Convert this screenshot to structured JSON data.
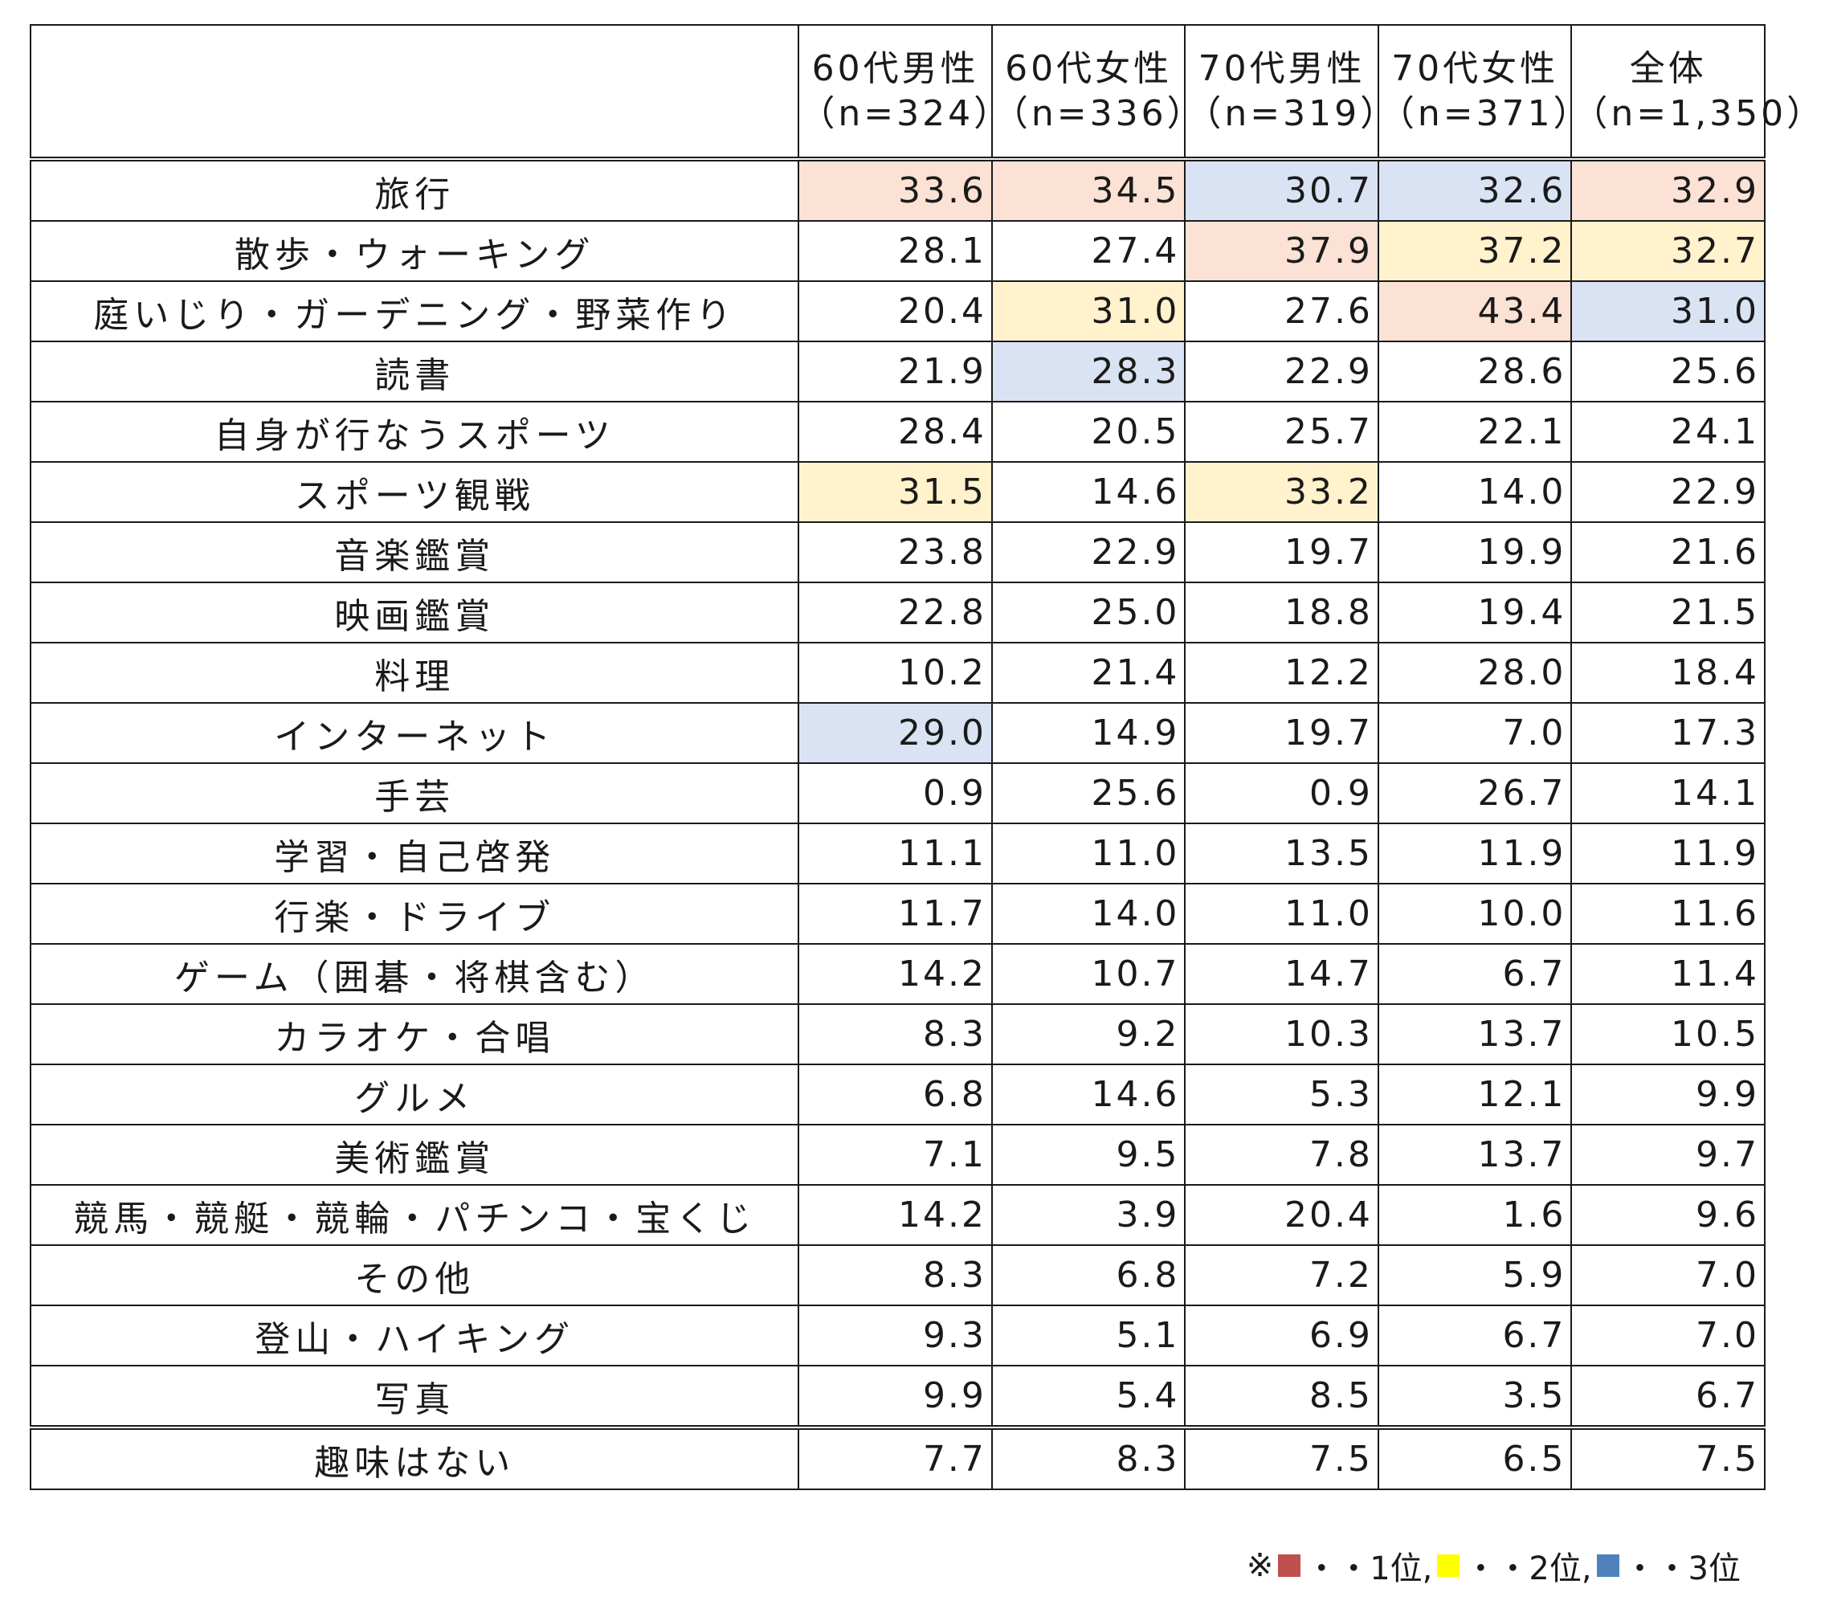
{
  "chart_data": {
    "type": "table",
    "columns": [
      {
        "label": "60代男性",
        "n": "（n=324）"
      },
      {
        "label": "60代女性",
        "n": "（n=336）"
      },
      {
        "label": "70代男性",
        "n": "（n=319）"
      },
      {
        "label": "70代女性",
        "n": "（n=371）"
      },
      {
        "label": "全体",
        "n": "（n=1,350）"
      }
    ],
    "rows": [
      {
        "label": "旅行",
        "values": [
          "33.6",
          "34.5",
          "30.7",
          "32.6",
          "32.9"
        ],
        "ranks": [
          1,
          1,
          3,
          3,
          1
        ]
      },
      {
        "label": "散歩・ウォーキング",
        "values": [
          "28.1",
          "27.4",
          "37.9",
          "37.2",
          "32.7"
        ],
        "ranks": [
          0,
          0,
          1,
          2,
          2
        ]
      },
      {
        "label": "庭いじり・ガーデニング・野菜作り",
        "values": [
          "20.4",
          "31.0",
          "27.6",
          "43.4",
          "31.0"
        ],
        "ranks": [
          0,
          2,
          0,
          1,
          3
        ]
      },
      {
        "label": "読書",
        "values": [
          "21.9",
          "28.3",
          "22.9",
          "28.6",
          "25.6"
        ],
        "ranks": [
          0,
          3,
          0,
          0,
          0
        ]
      },
      {
        "label": "自身が行なうスポーツ",
        "values": [
          "28.4",
          "20.5",
          "25.7",
          "22.1",
          "24.1"
        ],
        "ranks": [
          0,
          0,
          0,
          0,
          0
        ]
      },
      {
        "label": "スポーツ観戦",
        "values": [
          "31.5",
          "14.6",
          "33.2",
          "14.0",
          "22.9"
        ],
        "ranks": [
          2,
          0,
          2,
          0,
          0
        ]
      },
      {
        "label": "音楽鑑賞",
        "values": [
          "23.8",
          "22.9",
          "19.7",
          "19.9",
          "21.6"
        ],
        "ranks": [
          0,
          0,
          0,
          0,
          0
        ]
      },
      {
        "label": "映画鑑賞",
        "values": [
          "22.8",
          "25.0",
          "18.8",
          "19.4",
          "21.5"
        ],
        "ranks": [
          0,
          0,
          0,
          0,
          0
        ]
      },
      {
        "label": "料理",
        "values": [
          "10.2",
          "21.4",
          "12.2",
          "28.0",
          "18.4"
        ],
        "ranks": [
          0,
          0,
          0,
          0,
          0
        ]
      },
      {
        "label": "インターネット",
        "values": [
          "29.0",
          "14.9",
          "19.7",
          "7.0",
          "17.3"
        ],
        "ranks": [
          3,
          0,
          0,
          0,
          0
        ]
      },
      {
        "label": "手芸",
        "values": [
          "0.9",
          "25.6",
          "0.9",
          "26.7",
          "14.1"
        ],
        "ranks": [
          0,
          0,
          0,
          0,
          0
        ]
      },
      {
        "label": "学習・自己啓発",
        "values": [
          "11.1",
          "11.0",
          "13.5",
          "11.9",
          "11.9"
        ],
        "ranks": [
          0,
          0,
          0,
          0,
          0
        ]
      },
      {
        "label": "行楽・ドライブ",
        "values": [
          "11.7",
          "14.0",
          "11.0",
          "10.0",
          "11.6"
        ],
        "ranks": [
          0,
          0,
          0,
          0,
          0
        ]
      },
      {
        "label": "ゲーム（囲碁・将棋含む）",
        "values": [
          "14.2",
          "10.7",
          "14.7",
          "6.7",
          "11.4"
        ],
        "ranks": [
          0,
          0,
          0,
          0,
          0
        ]
      },
      {
        "label": "カラオケ・合唱",
        "values": [
          "8.3",
          "9.2",
          "10.3",
          "13.7",
          "10.5"
        ],
        "ranks": [
          0,
          0,
          0,
          0,
          0
        ]
      },
      {
        "label": "グルメ",
        "values": [
          "6.8",
          "14.6",
          "5.3",
          "12.1",
          "9.9"
        ],
        "ranks": [
          0,
          0,
          0,
          0,
          0
        ]
      },
      {
        "label": "美術鑑賞",
        "values": [
          "7.1",
          "9.5",
          "7.8",
          "13.7",
          "9.7"
        ],
        "ranks": [
          0,
          0,
          0,
          0,
          0
        ]
      },
      {
        "label": "競馬・競艇・競輪・パチンコ・宝くじ",
        "values": [
          "14.2",
          "3.9",
          "20.4",
          "1.6",
          "9.6"
        ],
        "ranks": [
          0,
          0,
          0,
          0,
          0
        ]
      },
      {
        "label": "その他",
        "values": [
          "8.3",
          "6.8",
          "7.2",
          "5.9",
          "7.0"
        ],
        "ranks": [
          0,
          0,
          0,
          0,
          0
        ]
      },
      {
        "label": "登山・ハイキング",
        "values": [
          "9.3",
          "5.1",
          "6.9",
          "6.7",
          "7.0"
        ],
        "ranks": [
          0,
          0,
          0,
          0,
          0
        ]
      },
      {
        "label": "写真",
        "values": [
          "9.9",
          "5.4",
          "8.5",
          "3.5",
          "6.7"
        ],
        "ranks": [
          0,
          0,
          0,
          0,
          0
        ]
      }
    ],
    "footer_row": {
      "label": "趣味はない",
      "values": [
        "7.7",
        "8.3",
        "7.5",
        "6.5",
        "7.5"
      ]
    },
    "rank_colors": {
      "1": "#fbe2d5",
      "2": "#fff2cc",
      "3": "#dae3f3"
    }
  },
  "legend": {
    "prefix": "※",
    "items": [
      {
        "text": "・・1位,",
        "color": "#c0504d"
      },
      {
        "text": "・・2位,",
        "color": "#ffff00"
      },
      {
        "text": "・・3位",
        "color": "#4f81bd"
      }
    ]
  }
}
